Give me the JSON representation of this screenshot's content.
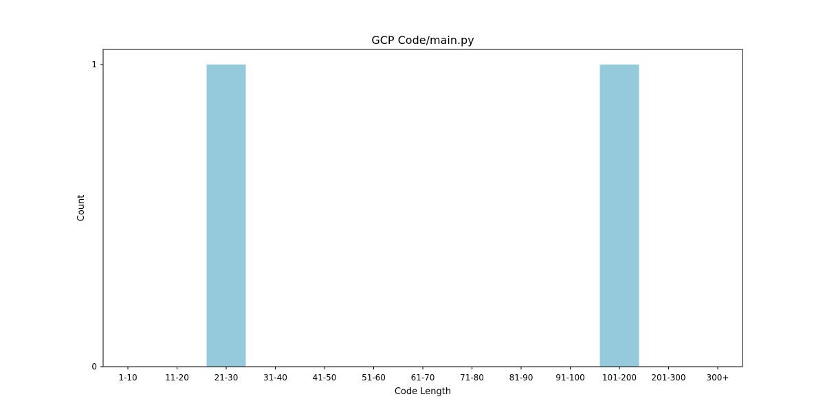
{
  "chart_data": {
    "type": "bar",
    "title": "GCP Code/main.py",
    "xlabel": "Code Length",
    "ylabel": "Count",
    "categories": [
      "1-10",
      "11-20",
      "21-30",
      "31-40",
      "41-50",
      "51-60",
      "61-70",
      "71-80",
      "81-90",
      "91-100",
      "101-200",
      "201-300",
      "300+"
    ],
    "values": [
      0,
      0,
      1,
      0,
      0,
      0,
      0,
      0,
      0,
      0,
      1,
      0,
      0
    ],
    "yticks": [
      0,
      1
    ],
    "ylim": [
      0,
      1.05
    ],
    "grid": false,
    "bar_color": "#95c9dc"
  }
}
